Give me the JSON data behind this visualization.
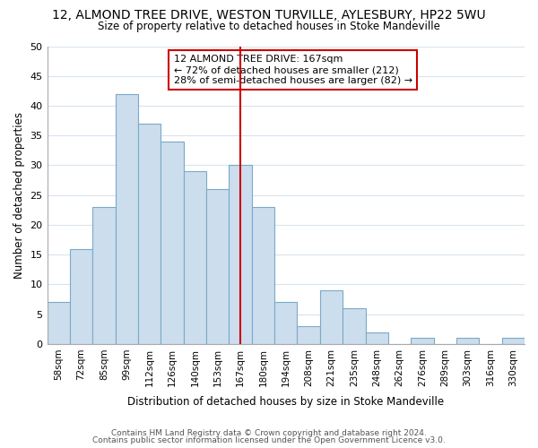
{
  "title": "12, ALMOND TREE DRIVE, WESTON TURVILLE, AYLESBURY, HP22 5WU",
  "subtitle": "Size of property relative to detached houses in Stoke Mandeville",
  "xlabel": "Distribution of detached houses by size in Stoke Mandeville",
  "ylabel": "Number of detached properties",
  "footer1": "Contains HM Land Registry data © Crown copyright and database right 2024.",
  "footer2": "Contains public sector information licensed under the Open Government Licence v3.0.",
  "bar_labels": [
    "58sqm",
    "72sqm",
    "85sqm",
    "99sqm",
    "112sqm",
    "126sqm",
    "140sqm",
    "153sqm",
    "167sqm",
    "180sqm",
    "194sqm",
    "208sqm",
    "221sqm",
    "235sqm",
    "248sqm",
    "262sqm",
    "276sqm",
    "289sqm",
    "303sqm",
    "316sqm",
    "330sqm"
  ],
  "bar_values": [
    7,
    16,
    23,
    42,
    37,
    34,
    29,
    26,
    30,
    23,
    7,
    3,
    9,
    6,
    2,
    0,
    1,
    0,
    1,
    0,
    1
  ],
  "bar_color": "#ccdded",
  "bar_edge_color": "#7aaac8",
  "vline_x": 8,
  "vline_color": "#cc0000",
  "annotation_text": "12 ALMOND TREE DRIVE: 167sqm\n← 72% of detached houses are smaller (212)\n28% of semi-detached houses are larger (82) →",
  "annotation_box_color": "#cc0000",
  "background_color": "#ffffff",
  "grid_color": "#d8e4ee",
  "ylim": [
    0,
    50
  ],
  "yticks": [
    0,
    5,
    10,
    15,
    20,
    25,
    30,
    35,
    40,
    45,
    50
  ]
}
